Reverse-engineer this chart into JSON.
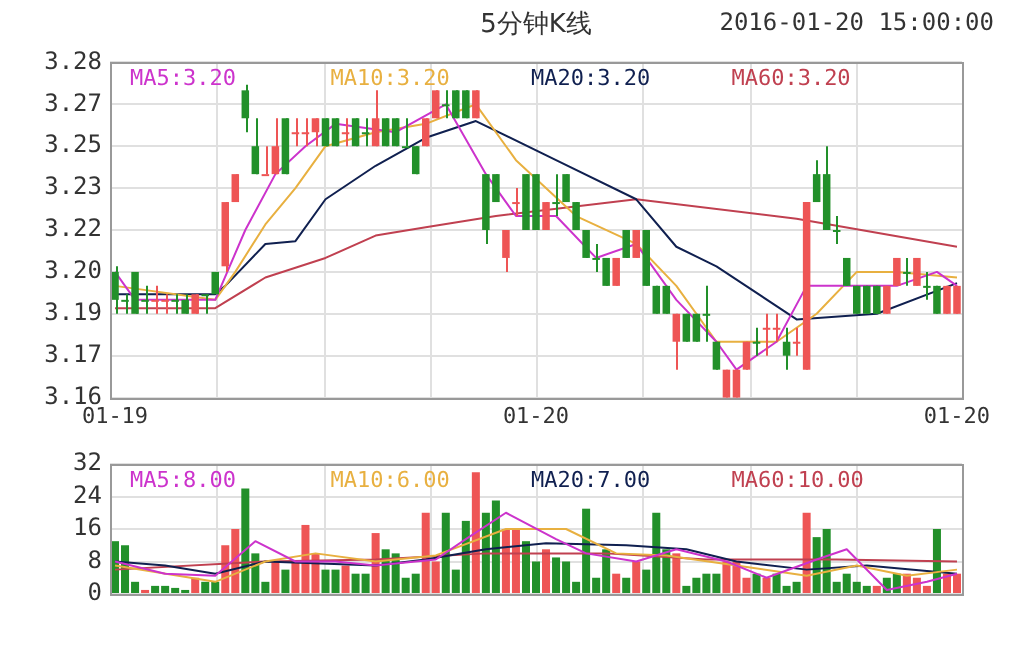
{
  "chart_data": [
    {
      "type": "candlestick",
      "title": "5分钟K线",
      "subtitle": "2016-01-20 15:00:00",
      "categories": [
        "01-19",
        null,
        null,
        null,
        null,
        null,
        null,
        null,
        null,
        null,
        null,
        null,
        null,
        null,
        null,
        null,
        null,
        null,
        null,
        null,
        null,
        null,
        null,
        null,
        null,
        null,
        null,
        null,
        null,
        null,
        null,
        null,
        null,
        null,
        null,
        null,
        null,
        null,
        null,
        null,
        null,
        null,
        "01-20",
        null,
        null,
        null,
        null,
        null,
        null,
        null,
        null,
        null,
        null,
        null,
        null,
        null,
        null,
        null,
        null,
        null,
        null,
        null,
        null,
        null,
        null,
        null,
        null,
        null,
        null,
        null,
        null,
        null,
        null,
        null,
        null,
        null,
        null,
        null,
        null,
        null,
        null,
        null,
        null,
        null,
        "01-20"
      ],
      "ohlc": [
        [
          3.205,
          3.207,
          3.19,
          3.195
        ],
        [
          3.195,
          3.197,
          3.19,
          3.195
        ],
        [
          3.205,
          3.205,
          3.19,
          3.19
        ],
        [
          3.195,
          3.2,
          3.19,
          3.195
        ],
        [
          3.195,
          3.2,
          3.19,
          3.195
        ],
        [
          3.195,
          3.197,
          3.19,
          3.195
        ],
        [
          3.195,
          3.197,
          3.19,
          3.195
        ],
        [
          3.195,
          3.197,
          3.19,
          3.19
        ],
        [
          3.19,
          3.197,
          3.19,
          3.197
        ],
        [
          3.197,
          3.197,
          3.19,
          3.197
        ],
        [
          3.205,
          3.205,
          3.197,
          3.197
        ],
        [
          3.207,
          3.23,
          3.205,
          3.23
        ],
        [
          3.23,
          3.24,
          3.23,
          3.24
        ],
        [
          3.27,
          3.272,
          3.255,
          3.26
        ],
        [
          3.25,
          3.26,
          3.24,
          3.24
        ],
        [
          3.24,
          3.25,
          3.24,
          3.24
        ],
        [
          3.24,
          3.26,
          3.24,
          3.25
        ],
        [
          3.26,
          3.26,
          3.24,
          3.24
        ],
        [
          3.255,
          3.26,
          3.25,
          3.255
        ],
        [
          3.255,
          3.26,
          3.25,
          3.255
        ],
        [
          3.255,
          3.26,
          3.25,
          3.26
        ],
        [
          3.26,
          3.26,
          3.25,
          3.25
        ],
        [
          3.26,
          3.26,
          3.25,
          3.25
        ],
        [
          3.255,
          3.26,
          3.25,
          3.255
        ],
        [
          3.26,
          3.26,
          3.25,
          3.25
        ],
        [
          3.255,
          3.26,
          3.25,
          3.255
        ],
        [
          3.25,
          3.27,
          3.25,
          3.26
        ],
        [
          3.26,
          3.26,
          3.25,
          3.25
        ],
        [
          3.26,
          3.26,
          3.25,
          3.25
        ],
        [
          3.25,
          3.26,
          3.25,
          3.25
        ],
        [
          3.25,
          3.25,
          3.24,
          3.24
        ],
        [
          3.25,
          3.26,
          3.25,
          3.26
        ],
        [
          3.26,
          3.27,
          3.26,
          3.27
        ],
        [
          3.265,
          3.27,
          3.26,
          3.265
        ],
        [
          3.27,
          3.27,
          3.26,
          3.26
        ],
        [
          3.27,
          3.27,
          3.26,
          3.26
        ],
        [
          3.26,
          3.27,
          3.26,
          3.27
        ],
        [
          3.24,
          3.24,
          3.215,
          3.22
        ],
        [
          3.24,
          3.24,
          3.23,
          3.23
        ],
        [
          3.21,
          3.22,
          3.205,
          3.22
        ],
        [
          3.23,
          3.235,
          3.225,
          3.23
        ],
        [
          3.24,
          3.24,
          3.22,
          3.22
        ],
        [
          3.24,
          3.24,
          3.22,
          3.22
        ],
        [
          3.22,
          3.23,
          3.22,
          3.23
        ],
        [
          3.23,
          3.24,
          3.225,
          3.23
        ],
        [
          3.24,
          3.24,
          3.23,
          3.23
        ],
        [
          3.23,
          3.23,
          3.22,
          3.22
        ],
        [
          3.22,
          3.22,
          3.21,
          3.21
        ],
        [
          3.21,
          3.215,
          3.205,
          3.21
        ],
        [
          3.21,
          3.21,
          3.2,
          3.2
        ],
        [
          3.2,
          3.21,
          3.2,
          3.21
        ],
        [
          3.22,
          3.22,
          3.21,
          3.21
        ],
        [
          3.21,
          3.22,
          3.21,
          3.22
        ],
        [
          3.22,
          3.22,
          3.2,
          3.2
        ],
        [
          3.2,
          3.2,
          3.19,
          3.19
        ],
        [
          3.2,
          3.2,
          3.19,
          3.19
        ],
        [
          3.18,
          3.19,
          3.17,
          3.19
        ],
        [
          3.19,
          3.19,
          3.18,
          3.18
        ],
        [
          3.19,
          3.19,
          3.18,
          3.18
        ],
        [
          3.19,
          3.2,
          3.18,
          3.19
        ],
        [
          3.18,
          3.18,
          3.17,
          3.17
        ],
        [
          3.16,
          3.17,
          3.16,
          3.17
        ],
        [
          3.16,
          3.17,
          3.16,
          3.17
        ],
        [
          3.17,
          3.18,
          3.17,
          3.18
        ],
        [
          3.18,
          3.185,
          3.175,
          3.18
        ],
        [
          3.185,
          3.19,
          3.175,
          3.185
        ],
        [
          3.185,
          3.19,
          3.18,
          3.185
        ],
        [
          3.18,
          3.185,
          3.17,
          3.175
        ],
        [
          3.18,
          3.185,
          3.175,
          3.18
        ],
        [
          3.17,
          3.23,
          3.17,
          3.23
        ],
        [
          3.24,
          3.245,
          3.23,
          3.23
        ],
        [
          3.24,
          3.25,
          3.22,
          3.22
        ],
        [
          3.22,
          3.225,
          3.215,
          3.22
        ],
        [
          3.21,
          3.21,
          3.2,
          3.2
        ],
        [
          3.2,
          3.2,
          3.19,
          3.19
        ],
        [
          3.2,
          3.2,
          3.19,
          3.19
        ],
        [
          3.2,
          3.2,
          3.19,
          3.19
        ],
        [
          3.19,
          3.2,
          3.19,
          3.2
        ],
        [
          3.2,
          3.21,
          3.2,
          3.21
        ],
        [
          3.205,
          3.21,
          3.2,
          3.205
        ],
        [
          3.2,
          3.21,
          3.2,
          3.21
        ],
        [
          3.2,
          3.205,
          3.195,
          3.2
        ],
        [
          3.2,
          3.2,
          3.19,
          3.19
        ],
        [
          3.19,
          3.2,
          3.19,
          3.2
        ],
        [
          3.19,
          3.2,
          3.19,
          3.2
        ]
      ],
      "colors": [
        "#22902a",
        "#22902a",
        "#22902a",
        "#22902a",
        "#ee5555",
        "#ee5555",
        "#22902a",
        "#22902a",
        "#ee5555",
        "#22902a",
        "#22902a",
        "#ee5555",
        "#ee5555",
        "#22902a",
        "#22902a",
        "#ee5555",
        "#ee5555",
        "#22902a",
        "#ee5555",
        "#ee5555",
        "#ee5555",
        "#22902a",
        "#22902a",
        "#ee5555",
        "#22902a",
        "#22902a",
        "#ee5555",
        "#22902a",
        "#22902a",
        "#22902a",
        "#22902a",
        "#ee5555",
        "#ee5555",
        "#22902a",
        "#22902a",
        "#22902a",
        "#ee5555",
        "#22902a",
        "#22902a",
        "#ee5555",
        "#ee5555",
        "#22902a",
        "#22902a",
        "#ee5555",
        "#22902a",
        "#22902a",
        "#22902a",
        "#22902a",
        "#22902a",
        "#22902a",
        "#ee5555",
        "#22902a",
        "#ee5555",
        "#22902a",
        "#22902a",
        "#22902a",
        "#ee5555",
        "#22902a",
        "#22902a",
        "#22902a",
        "#22902a",
        "#ee5555",
        "#ee5555",
        "#ee5555",
        "#22902a",
        "#ee5555",
        "#ee5555",
        "#22902a",
        "#ee5555",
        "#ee5555",
        "#22902a",
        "#22902a",
        "#22902a",
        "#22902a",
        "#22902a",
        "#22902a",
        "#22902a",
        "#ee5555",
        "#ee5555",
        "#22902a",
        "#ee5555",
        "#22902a",
        "#22902a",
        "#ee5555",
        "#ee5555"
      ],
      "series": [
        {
          "type": "line",
          "name": "MA5:3.20",
          "color": "#cc33cc",
          "values": [
            3.205,
            null,
            3.195,
            null,
            null,
            null,
            null,
            null,
            null,
            null,
            3.195,
            null,
            null,
            3.22,
            null,
            null,
            3.24,
            null,
            null,
            3.25,
            null,
            null,
            3.258,
            null,
            null,
            null,
            null,
            null,
            3.255,
            null,
            null,
            null,
            null,
            3.265,
            null,
            null,
            null,
            3.24,
            null,
            null,
            3.225,
            null,
            null,
            null,
            3.225,
            null,
            null,
            null,
            3.21,
            null,
            null,
            null,
            3.215,
            null,
            null,
            null,
            3.195,
            null,
            null,
            null,
            3.18,
            null,
            3.17,
            null,
            null,
            null,
            3.18,
            null,
            null,
            3.2,
            null,
            null,
            null,
            null,
            3.2,
            null,
            null,
            null,
            3.2,
            null,
            null,
            null,
            3.205,
            null,
            3.2
          ]
        },
        {
          "type": "line",
          "name": "MA10:3.20",
          "color": "#e8b040",
          "values": [
            3.2,
            null,
            null,
            null,
            null,
            null,
            null,
            null,
            null,
            null,
            3.195,
            null,
            3.205,
            null,
            null,
            3.222,
            null,
            null,
            3.235,
            null,
            null,
            3.25,
            null,
            null,
            null,
            null,
            3.255,
            null,
            null,
            null,
            null,
            3.258,
            null,
            null,
            null,
            null,
            3.265,
            null,
            null,
            null,
            3.245,
            null,
            null,
            null,
            null,
            null,
            3.225,
            null,
            null,
            null,
            null,
            null,
            3.215,
            null,
            null,
            null,
            3.2,
            null,
            null,
            null,
            3.18,
            null,
            null,
            null,
            null,
            null,
            3.18,
            null,
            null,
            null,
            3.19,
            null,
            null,
            null,
            3.205,
            null,
            null,
            null,
            3.205,
            null,
            null,
            null,
            null,
            null,
            3.203
          ]
        },
        {
          "type": "line",
          "name": "MA20:3.20",
          "color": "#102050",
          "values": [
            3.197,
            null,
            null,
            null,
            null,
            null,
            null,
            null,
            null,
            null,
            3.197,
            3.2,
            null,
            null,
            null,
            3.215,
            null,
            null,
            3.216,
            null,
            null,
            3.231,
            null,
            null,
            null,
            null,
            3.243,
            null,
            null,
            null,
            null,
            3.253,
            null,
            null,
            null,
            null,
            3.259,
            null,
            null,
            null,
            null,
            null,
            null,
            null,
            3.245,
            null,
            null,
            null,
            null,
            null,
            null,
            null,
            3.231,
            null,
            null,
            null,
            3.214,
            null,
            null,
            null,
            3.207,
            null,
            null,
            null,
            null,
            null,
            null,
            null,
            3.188,
            null,
            null,
            null,
            null,
            null,
            null,
            null,
            3.19,
            null,
            null,
            null,
            null,
            null,
            null,
            null,
            3.201
          ]
        },
        {
          "type": "line",
          "name": "MA60:3.20",
          "color": "#c04050",
          "values": [
            3.192,
            null,
            null,
            null,
            null,
            null,
            null,
            null,
            null,
            null,
            3.192,
            null,
            null,
            null,
            null,
            3.203,
            null,
            null,
            null,
            null,
            null,
            3.21,
            null,
            null,
            null,
            null,
            3.218,
            null,
            null,
            null,
            null,
            3.221,
            null,
            null,
            null,
            null,
            null,
            null,
            3.225,
            null,
            null,
            null,
            null,
            null,
            null,
            null,
            null,
            null,
            null,
            null,
            null,
            null,
            3.231,
            null,
            null,
            null,
            null,
            null,
            null,
            null,
            null,
            null,
            null,
            null,
            null,
            null,
            null,
            null,
            3.224,
            null,
            null,
            null,
            null,
            null,
            null,
            null,
            null,
            null,
            null,
            null,
            null,
            null,
            null,
            null,
            3.214
          ]
        }
      ],
      "ylim": [
        3.16,
        3.28
      ],
      "yticks": [
        3.16,
        {
          "value": 3.175,
          "label": "3.17"
        },
        3.19,
        {
          "value": 3.205,
          "label": "3.20"
        },
        3.22,
        {
          "value": 3.235,
          "label": "3.23"
        },
        3.25,
        {
          "value": 3.265,
          "label": "3.27"
        },
        3.28
      ],
      "grid": true,
      "legend": "top",
      "marker": "none"
    },
    {
      "type": "bar",
      "categories": [
        null,
        null,
        null,
        null,
        null,
        null,
        null,
        null,
        null,
        null,
        null,
        null,
        null,
        null,
        null,
        null,
        null,
        null,
        null,
        null,
        null,
        null,
        null,
        null,
        null,
        null,
        null,
        null,
        null,
        null,
        null,
        null,
        null,
        null,
        null,
        null,
        null,
        null,
        null,
        null,
        null,
        null,
        null,
        null,
        null,
        null,
        null,
        null,
        null,
        null,
        null,
        null,
        null,
        null,
        null,
        null,
        null,
        null,
        null,
        null,
        null,
        null,
        null,
        null,
        null,
        null,
        null,
        null,
        null,
        null,
        null,
        null,
        null,
        null,
        null,
        null,
        null,
        null,
        null,
        null,
        null,
        null,
        null,
        null,
        null
      ],
      "series": [
        {
          "type": "bar",
          "values": [
            13,
            12,
            3,
            1,
            2,
            2,
            1.5,
            1,
            4,
            3,
            3,
            12,
            16,
            26,
            10,
            3,
            8,
            6,
            8,
            17,
            10,
            6,
            6,
            7,
            5,
            5,
            15,
            11,
            10,
            4,
            5,
            20,
            8,
            20,
            6,
            18,
            30,
            20,
            23,
            16,
            16,
            13,
            8,
            11,
            9,
            8,
            3,
            21,
            4,
            11,
            5,
            4,
            8,
            6,
            20,
            11,
            10,
            2,
            4,
            5,
            5,
            8,
            8,
            4,
            5,
            4,
            5,
            2,
            3,
            20,
            14,
            16,
            3,
            5,
            3,
            2,
            2,
            4,
            5,
            5,
            4,
            2,
            16,
            5,
            5
          ],
          "colors": [
            "#22902a",
            "#22902a",
            "#22902a",
            "#ee5555",
            "#22902a",
            "#22902a",
            "#22902a",
            "#22902a",
            "#ee5555",
            "#22902a",
            "#22902a",
            "#ee5555",
            "#ee5555",
            "#22902a",
            "#22902a",
            "#22902a",
            "#ee5555",
            "#22902a",
            "#ee5555",
            "#ee5555",
            "#ee5555",
            "#22902a",
            "#22902a",
            "#ee5555",
            "#22902a",
            "#22902a",
            "#ee5555",
            "#22902a",
            "#22902a",
            "#22902a",
            "#22902a",
            "#ee5555",
            "#ee5555",
            "#22902a",
            "#22902a",
            "#22902a",
            "#ee5555",
            "#22902a",
            "#22902a",
            "#ee5555",
            "#ee5555",
            "#22902a",
            "#22902a",
            "#ee5555",
            "#22902a",
            "#22902a",
            "#22902a",
            "#22902a",
            "#22902a",
            "#22902a",
            "#ee5555",
            "#22902a",
            "#ee5555",
            "#22902a",
            "#22902a",
            "#22902a",
            "#ee5555",
            "#22902a",
            "#22902a",
            "#22902a",
            "#22902a",
            "#ee5555",
            "#ee5555",
            "#ee5555",
            "#22902a",
            "#ee5555",
            "#22902a",
            "#22902a",
            "#22902a",
            "#ee5555",
            "#22902a",
            "#22902a",
            "#22902a",
            "#22902a",
            "#22902a",
            "#22902a",
            "#ee5555",
            "#22902a",
            "#22902a",
            "#ee5555",
            "#ee5555",
            "#ee5555",
            "#22902a",
            "#ee5555",
            "#ee5555"
          ]
        },
        {
          "type": "line",
          "name": "MA5:8.00",
          "color": "#cc33cc",
          "values": [
            8,
            null,
            null,
            null,
            null,
            5,
            null,
            null,
            null,
            null,
            4.5,
            null,
            null,
            null,
            13,
            null,
            null,
            null,
            8,
            null,
            null,
            null,
            8,
            null,
            null,
            null,
            7,
            null,
            null,
            null,
            null,
            null,
            8.5,
            null,
            null,
            13.5,
            null,
            null,
            null,
            20,
            null,
            null,
            null,
            null,
            13.5,
            null,
            null,
            10,
            null,
            null,
            null,
            null,
            8,
            null,
            null,
            null,
            11,
            null,
            null,
            null,
            null,
            8,
            null,
            null,
            null,
            4,
            null,
            null,
            null,
            null,
            8.5,
            null,
            null,
            11,
            null,
            null,
            null,
            1,
            null,
            null,
            null,
            3,
            null,
            null,
            5
          ]
        },
        {
          "type": "line",
          "name": "MA10:6.00",
          "color": "#e8b040",
          "values": [
            7,
            null,
            null,
            null,
            null,
            null,
            null,
            null,
            null,
            null,
            3,
            null,
            null,
            null,
            null,
            8,
            null,
            null,
            null,
            null,
            10,
            null,
            null,
            null,
            null,
            null,
            8,
            null,
            null,
            null,
            null,
            null,
            9.5,
            null,
            null,
            null,
            null,
            null,
            null,
            16,
            null,
            null,
            null,
            null,
            null,
            16,
            null,
            null,
            null,
            null,
            10,
            null,
            null,
            null,
            null,
            9.5,
            null,
            null,
            null,
            null,
            null,
            null,
            7,
            null,
            null,
            null,
            null,
            null,
            null,
            4.5,
            null,
            null,
            null,
            null,
            7,
            null,
            null,
            null,
            null,
            4.5,
            null,
            null,
            null,
            null,
            6
          ]
        },
        {
          "type": "line",
          "name": "MA20:7.00",
          "color": "#102050",
          "values": [
            8,
            null,
            null,
            null,
            null,
            7,
            null,
            null,
            null,
            null,
            5,
            null,
            null,
            null,
            null,
            8,
            null,
            null,
            null,
            null,
            null,
            null,
            null,
            null,
            null,
            null,
            7,
            null,
            null,
            null,
            null,
            8.5,
            null,
            null,
            null,
            null,
            null,
            11,
            null,
            null,
            null,
            null,
            null,
            12.5,
            null,
            null,
            null,
            null,
            null,
            null,
            null,
            12,
            null,
            null,
            null,
            null,
            null,
            11,
            null,
            null,
            null,
            null,
            8,
            null,
            null,
            null,
            null,
            null,
            null,
            6,
            null,
            null,
            null,
            null,
            null,
            7,
            null,
            null,
            null,
            null,
            null,
            null,
            null,
            null,
            5
          ]
        },
        {
          "type": "line",
          "name": "MA60:10.00",
          "color": "#c04050",
          "values": [
            6,
            null,
            null,
            null,
            null,
            null,
            null,
            null,
            null,
            null,
            null,
            null,
            null,
            null,
            null,
            8,
            null,
            null,
            null,
            null,
            null,
            null,
            null,
            null,
            null,
            null,
            8.5,
            null,
            null,
            null,
            null,
            null,
            null,
            null,
            null,
            null,
            null,
            10,
            null,
            null,
            null,
            null,
            null,
            null,
            null,
            null,
            null,
            null,
            null,
            10,
            null,
            null,
            null,
            null,
            null,
            null,
            null,
            null,
            null,
            8.5,
            null,
            null,
            null,
            null,
            null,
            null,
            null,
            null,
            null,
            null,
            null,
            null,
            8.5,
            null,
            null,
            null,
            null,
            null,
            null,
            null,
            null,
            null,
            null,
            null,
            8
          ]
        }
      ],
      "ylim": [
        0,
        32
      ],
      "yticks": [
        0,
        8,
        16,
        24,
        32
      ],
      "grid": true,
      "legend": "top",
      "marker": "none",
      "tick_labels": "y"
    }
  ]
}
